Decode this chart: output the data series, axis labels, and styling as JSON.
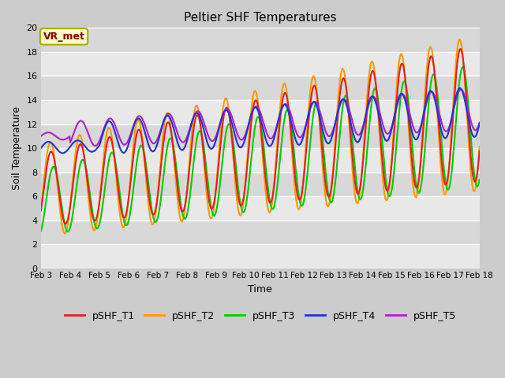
{
  "title": "Peltier SHF Temperatures",
  "xlabel": "Time",
  "ylabel": "Soil Temperature",
  "ylim": [
    0,
    20
  ],
  "background_color": "#c8c8c8",
  "plot_bg_light": "#e8e8e8",
  "plot_bg_dark": "#d8d8d8",
  "grid_color": "#ffffff",
  "annotation_text": "VR_met",
  "annotation_bg": "#ffffcc",
  "annotation_border": "#aaaa00",
  "annotation_text_color": "#880000",
  "series_colors": {
    "pSHF_T1": "#dd2222",
    "pSHF_T2": "#ff9900",
    "pSHF_T3": "#00cc00",
    "pSHF_T4": "#2233cc",
    "pSHF_T5": "#aa22cc"
  },
  "x_tick_labels": [
    "Feb 3",
    "Feb 4",
    "Feb 5",
    "Feb 6",
    "Feb 7",
    "Feb 8",
    "Feb 9",
    "Feb 10",
    "Feb 11",
    "Feb 12",
    "Feb 13",
    "Feb 14",
    "Feb 15",
    "Feb 16",
    "Feb 17",
    "Feb 18"
  ],
  "legend_labels": [
    "pSHF_T1",
    "pSHF_T2",
    "pSHF_T3",
    "pSHF_T4",
    "pSHF_T5"
  ]
}
